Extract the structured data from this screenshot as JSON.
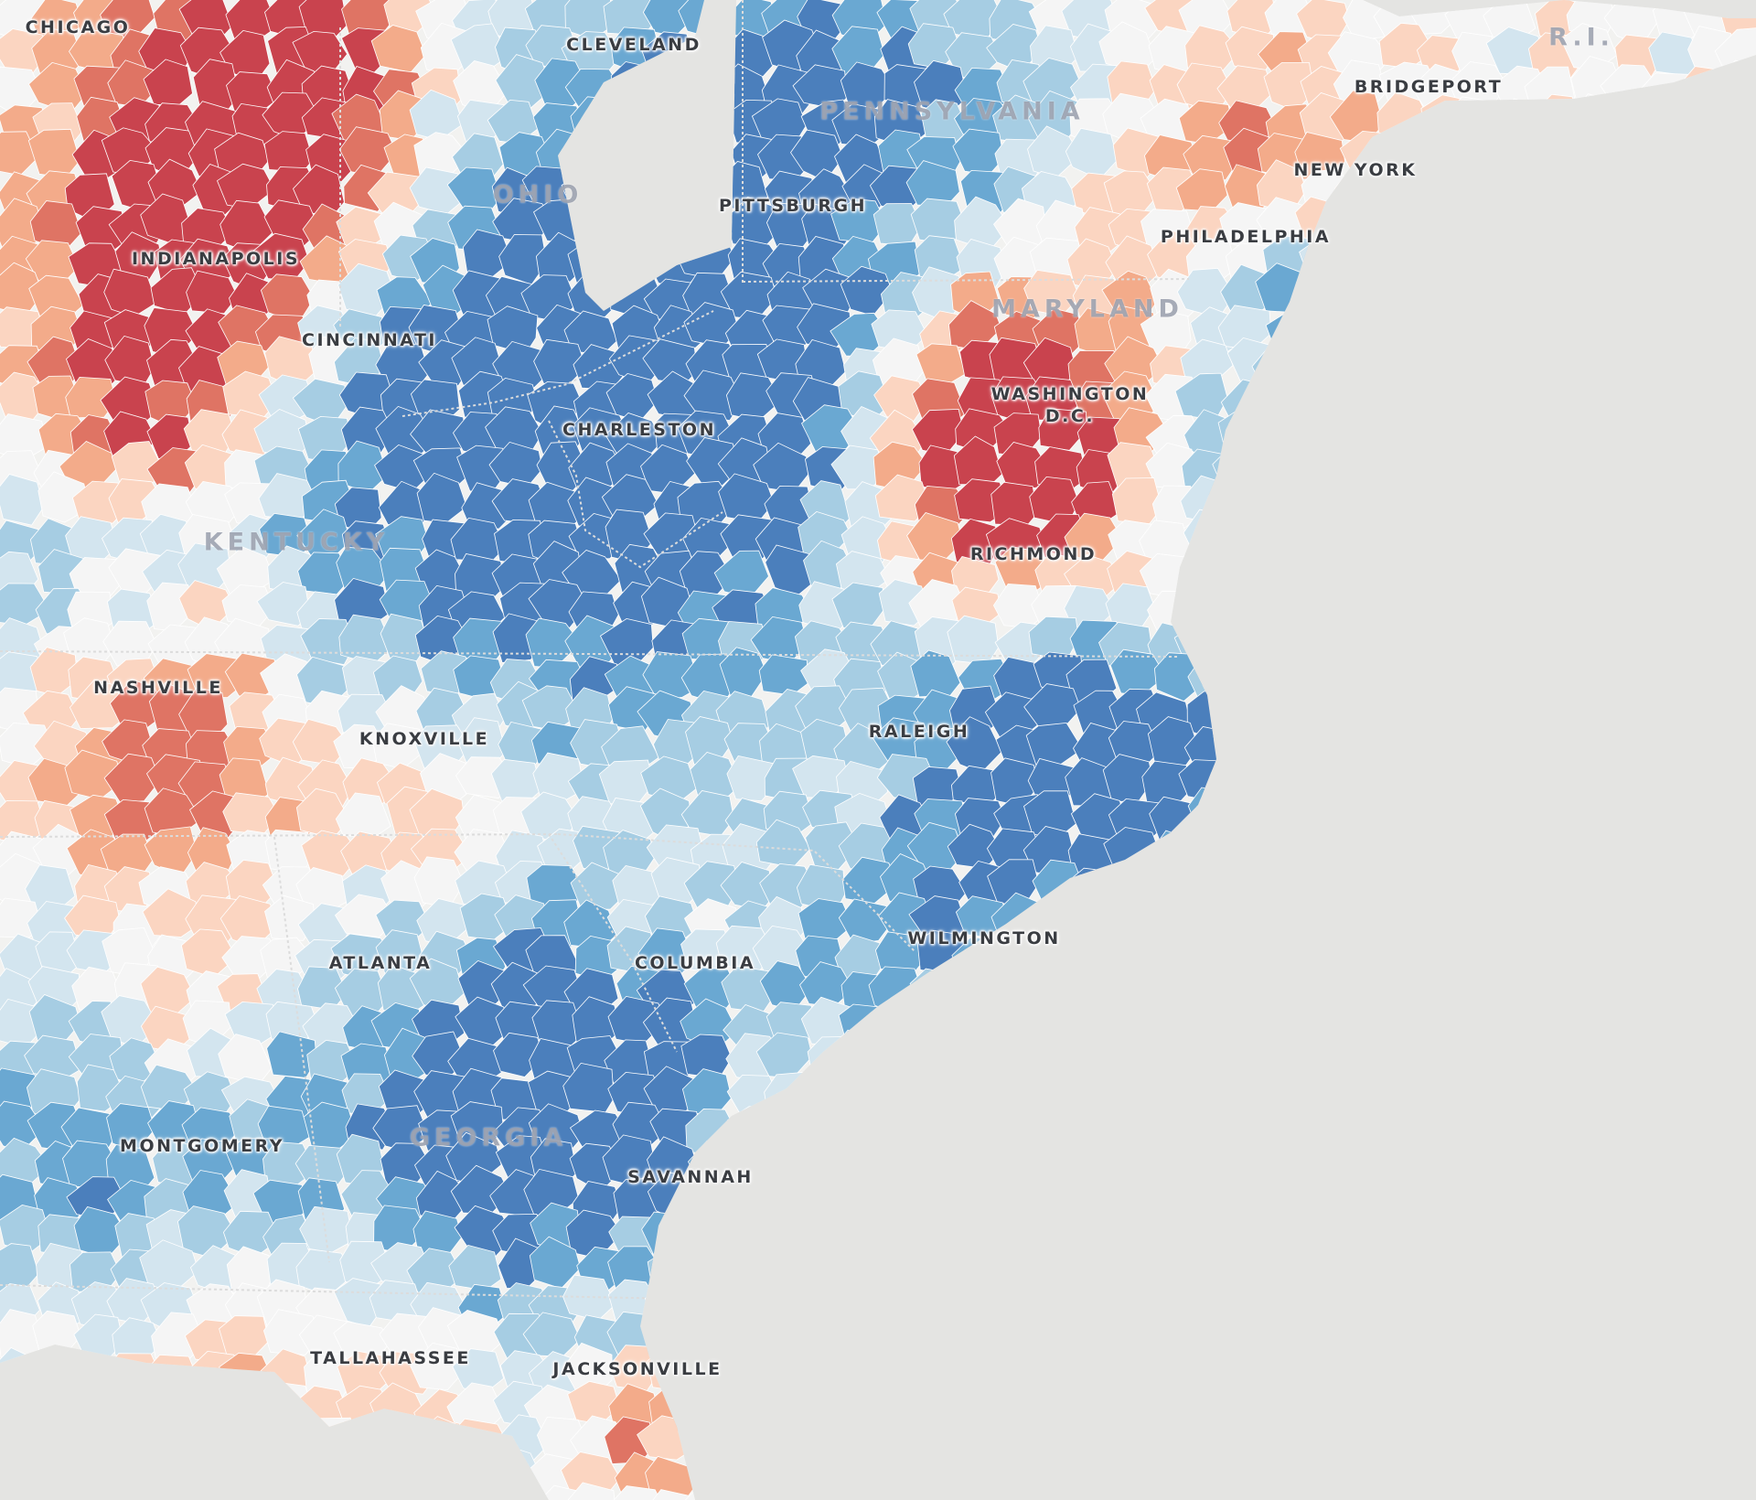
{
  "map": {
    "colors": {
      "ocean": "#e4e4e2",
      "land": "#f2f2f0",
      "border": "#ffffff",
      "scale": [
        "#4b7fbc",
        "#6aa8d2",
        "#a6cde3",
        "#d3e5ef",
        "#f5f5f5",
        "#fbd5c1",
        "#f3ab8a",
        "#df7464",
        "#c9434e"
      ]
    },
    "states": [
      {
        "key": "ohio",
        "label": "OHIO"
      },
      {
        "key": "pennsylvania",
        "label": "PENNSYLVANIA"
      },
      {
        "key": "maryland",
        "label": "MARYLAND"
      },
      {
        "key": "kentucky",
        "label": "KENTUCKY"
      },
      {
        "key": "georgia",
        "label": "GEORGIA"
      },
      {
        "key": "rhode_island",
        "label": "R.I."
      }
    ],
    "cities": [
      {
        "key": "chicago",
        "label": "CHICAGO"
      },
      {
        "key": "cleveland",
        "label": "CLEVELAND"
      },
      {
        "key": "bridgeport",
        "label": "BRIDGEPORT"
      },
      {
        "key": "new_york",
        "label": "NEW YORK"
      },
      {
        "key": "pittsburgh",
        "label": "PITTSBURGH"
      },
      {
        "key": "philadelphia",
        "label": "PHILADELPHIA"
      },
      {
        "key": "indianapolis",
        "label": "INDIANAPOLIS"
      },
      {
        "key": "cincinnati",
        "label": "CINCINNATI"
      },
      {
        "key": "washington",
        "label": "WASHINGTON\nD.C."
      },
      {
        "key": "charleston",
        "label": "CHARLESTON"
      },
      {
        "key": "richmond",
        "label": "RICHMOND"
      },
      {
        "key": "nashville",
        "label": "NASHVILLE"
      },
      {
        "key": "knoxville",
        "label": "KNOXVILLE"
      },
      {
        "key": "raleigh",
        "label": "RALEIGH"
      },
      {
        "key": "wilmington",
        "label": "WILMINGTON"
      },
      {
        "key": "atlanta",
        "label": "ATLANTA"
      },
      {
        "key": "columbia",
        "label": "COLUMBIA"
      },
      {
        "key": "montgomery",
        "label": "MONTGOMERY"
      },
      {
        "key": "savannah",
        "label": "SAVANNAH"
      },
      {
        "key": "tallahassee",
        "label": "TALLAHASSEE"
      },
      {
        "key": "jacksonville",
        "label": "JACKSONVILLE"
      }
    ]
  }
}
